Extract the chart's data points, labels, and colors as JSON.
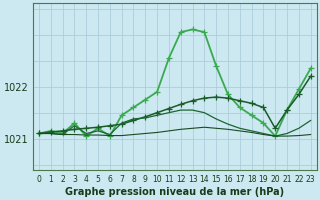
{
  "title": "Graphe pression niveau de la mer (hPa)",
  "background_color": "#cce8f0",
  "grid_color": "#a8c8d8",
  "xlim": [
    -0.5,
    23.5
  ],
  "ylim": [
    1020.4,
    1023.6
  ],
  "yticks": [
    1021,
    1022
  ],
  "xticks": [
    0,
    1,
    2,
    3,
    4,
    5,
    6,
    7,
    8,
    9,
    10,
    11,
    12,
    13,
    14,
    15,
    16,
    17,
    18,
    19,
    20,
    21,
    22,
    23
  ],
  "series": [
    {
      "x": [
        0,
        1,
        2,
        3,
        4,
        5,
        6,
        7,
        8,
        9,
        10,
        11,
        12,
        13,
        14,
        15,
        16,
        17,
        18,
        19,
        20,
        21,
        22,
        23
      ],
      "y": [
        1021.1,
        1021.15,
        1021.1,
        1021.3,
        1021.05,
        1021.2,
        1021.05,
        1021.45,
        1021.6,
        1021.75,
        1021.9,
        1022.55,
        1023.05,
        1023.1,
        1023.05,
        1022.4,
        1021.85,
        1021.6,
        1021.45,
        1021.3,
        1021.05,
        1021.55,
        1021.95,
        1022.35
      ],
      "color": "#3aaa50",
      "linewidth": 1.3,
      "marker": "+",
      "markersize": 5
    },
    {
      "x": [
        0,
        1,
        2,
        3,
        4,
        5,
        6,
        7,
        8,
        9,
        10,
        11,
        12,
        13,
        14,
        15,
        16,
        17,
        18,
        19,
        20,
        21,
        22,
        23
      ],
      "y": [
        1021.1,
        1021.13,
        1021.15,
        1021.18,
        1021.2,
        1021.22,
        1021.25,
        1021.28,
        1021.35,
        1021.42,
        1021.5,
        1021.58,
        1021.66,
        1021.73,
        1021.78,
        1021.8,
        1021.78,
        1021.73,
        1021.68,
        1021.6,
        1021.2,
        1021.55,
        1021.85,
        1022.2
      ],
      "color": "#1a5c28",
      "linewidth": 1.1,
      "marker": "+",
      "markersize": 4
    },
    {
      "x": [
        0,
        1,
        2,
        3,
        4,
        5,
        6,
        7,
        8,
        9,
        10,
        11,
        12,
        13,
        14,
        15,
        16,
        17,
        18,
        19,
        20,
        21,
        22,
        23
      ],
      "y": [
        1021.1,
        1021.1,
        1021.08,
        1021.25,
        1021.1,
        1021.15,
        1021.08,
        1021.3,
        1021.38,
        1021.4,
        1021.45,
        1021.5,
        1021.55,
        1021.55,
        1021.5,
        1021.38,
        1021.28,
        1021.2,
        1021.15,
        1021.1,
        1021.05,
        1021.1,
        1021.2,
        1021.35
      ],
      "color": "#1a6632",
      "linewidth": 0.9,
      "marker": null,
      "markersize": 0
    },
    {
      "x": [
        0,
        1,
        2,
        3,
        4,
        5,
        6,
        7,
        8,
        9,
        10,
        11,
        12,
        13,
        14,
        15,
        16,
        17,
        18,
        19,
        20,
        21,
        22,
        23
      ],
      "y": [
        1021.1,
        1021.1,
        1021.08,
        1021.08,
        1021.07,
        1021.07,
        1021.06,
        1021.06,
        1021.08,
        1021.1,
        1021.12,
        1021.15,
        1021.18,
        1021.2,
        1021.22,
        1021.2,
        1021.18,
        1021.15,
        1021.12,
        1021.08,
        1021.05,
        1021.05,
        1021.06,
        1021.08
      ],
      "color": "#1a4a22",
      "linewidth": 0.8,
      "marker": null,
      "markersize": 0
    }
  ]
}
